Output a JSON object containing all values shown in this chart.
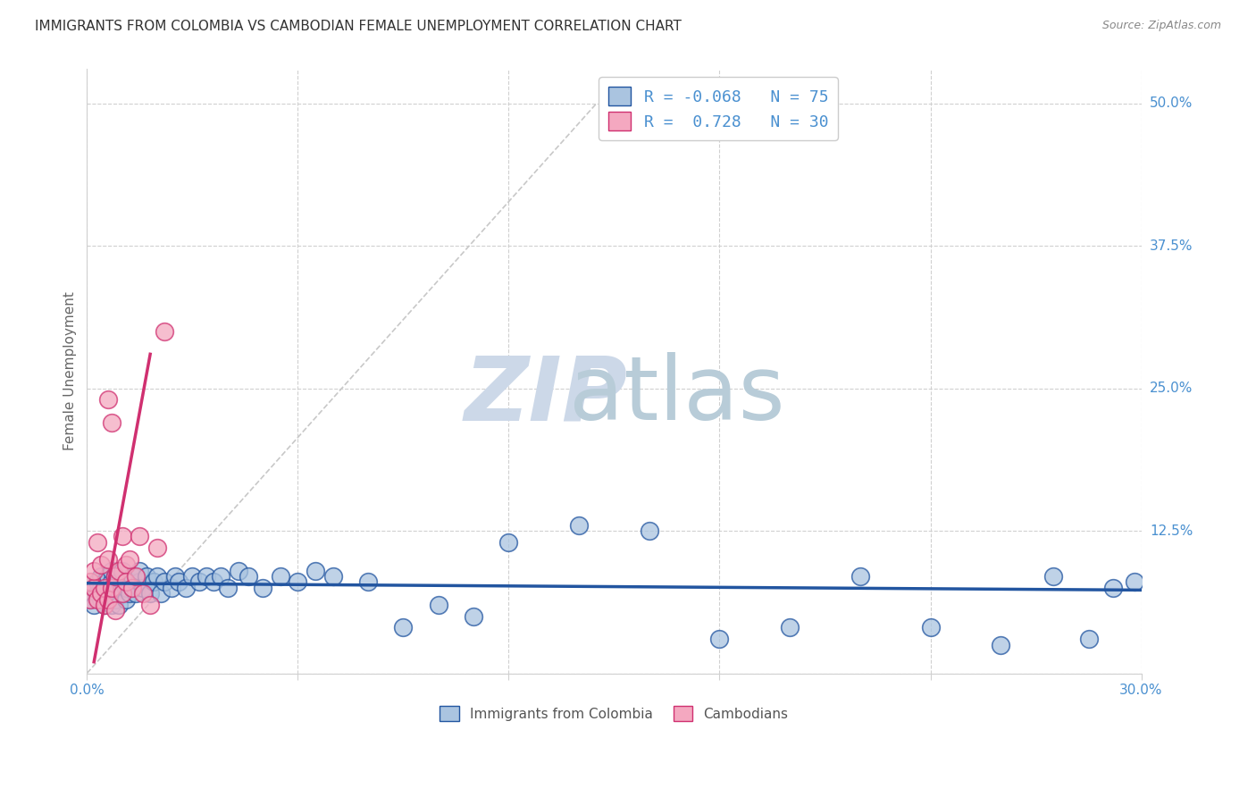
{
  "title": "IMMIGRANTS FROM COLOMBIA VS CAMBODIAN FEMALE UNEMPLOYMENT CORRELATION CHART",
  "source": "Source: ZipAtlas.com",
  "xlabel_blue": "Immigrants from Colombia",
  "xlabel_pink": "Cambodians",
  "ylabel": "Female Unemployment",
  "R_blue": -0.068,
  "N_blue": 75,
  "R_pink": 0.728,
  "N_pink": 30,
  "xlim": [
    0.0,
    0.3
  ],
  "ylim": [
    0.0,
    0.53
  ],
  "yticks": [
    0.0,
    0.125,
    0.25,
    0.375,
    0.5
  ],
  "ytick_labels": [
    "",
    "12.5%",
    "25.0%",
    "37.5%",
    "50.0%"
  ],
  "xticks": [
    0.0,
    0.06,
    0.12,
    0.18,
    0.24,
    0.3
  ],
  "xtick_labels": [
    "0.0%",
    "",
    "",
    "",
    "",
    "30.0%"
  ],
  "blue_color": "#aac4e0",
  "blue_line_color": "#2255a0",
  "pink_color": "#f4a8c0",
  "pink_line_color": "#d03070",
  "watermark_zip_color": "#ccd8e8",
  "watermark_atlas_color": "#b8ccd8",
  "blue_scatter_x": [
    0.001,
    0.002,
    0.002,
    0.003,
    0.003,
    0.004,
    0.004,
    0.004,
    0.005,
    0.005,
    0.005,
    0.006,
    0.006,
    0.006,
    0.007,
    0.007,
    0.007,
    0.007,
    0.008,
    0.008,
    0.008,
    0.009,
    0.009,
    0.01,
    0.01,
    0.01,
    0.011,
    0.011,
    0.012,
    0.012,
    0.013,
    0.013,
    0.014,
    0.015,
    0.015,
    0.016,
    0.017,
    0.018,
    0.019,
    0.02,
    0.021,
    0.022,
    0.024,
    0.025,
    0.026,
    0.028,
    0.03,
    0.032,
    0.034,
    0.036,
    0.038,
    0.04,
    0.043,
    0.046,
    0.05,
    0.055,
    0.06,
    0.065,
    0.07,
    0.08,
    0.09,
    0.1,
    0.11,
    0.12,
    0.14,
    0.16,
    0.18,
    0.2,
    0.22,
    0.24,
    0.26,
    0.275,
    0.285,
    0.292,
    0.298
  ],
  "blue_scatter_y": [
    0.065,
    0.075,
    0.06,
    0.07,
    0.08,
    0.065,
    0.075,
    0.085,
    0.06,
    0.07,
    0.08,
    0.065,
    0.075,
    0.085,
    0.06,
    0.07,
    0.08,
    0.09,
    0.065,
    0.075,
    0.085,
    0.06,
    0.08,
    0.07,
    0.08,
    0.09,
    0.065,
    0.075,
    0.07,
    0.08,
    0.075,
    0.085,
    0.07,
    0.08,
    0.09,
    0.075,
    0.085,
    0.07,
    0.08,
    0.085,
    0.07,
    0.08,
    0.075,
    0.085,
    0.08,
    0.075,
    0.085,
    0.08,
    0.085,
    0.08,
    0.085,
    0.075,
    0.09,
    0.085,
    0.075,
    0.085,
    0.08,
    0.09,
    0.085,
    0.08,
    0.04,
    0.06,
    0.05,
    0.115,
    0.13,
    0.125,
    0.03,
    0.04,
    0.085,
    0.04,
    0.025,
    0.085,
    0.03,
    0.075,
    0.08
  ],
  "pink_scatter_x": [
    0.001,
    0.001,
    0.002,
    0.002,
    0.003,
    0.003,
    0.004,
    0.004,
    0.005,
    0.005,
    0.006,
    0.006,
    0.006,
    0.007,
    0.007,
    0.008,
    0.008,
    0.009,
    0.01,
    0.01,
    0.011,
    0.011,
    0.012,
    0.013,
    0.014,
    0.015,
    0.016,
    0.018,
    0.02,
    0.022
  ],
  "pink_scatter_y": [
    0.065,
    0.08,
    0.075,
    0.09,
    0.065,
    0.115,
    0.07,
    0.095,
    0.06,
    0.075,
    0.065,
    0.1,
    0.24,
    0.22,
    0.075,
    0.085,
    0.055,
    0.09,
    0.07,
    0.12,
    0.095,
    0.08,
    0.1,
    0.075,
    0.085,
    0.12,
    0.07,
    0.06,
    0.11,
    0.3
  ],
  "blue_trendline_x": [
    0.0,
    0.3
  ],
  "blue_trendline_y": [
    0.079,
    0.073
  ],
  "pink_trendline_x": [
    0.002,
    0.018
  ],
  "pink_trendline_y": [
    0.01,
    0.28
  ],
  "grey_trendline_x": [
    0.0,
    0.145
  ],
  "grey_trendline_y": [
    0.0,
    0.5
  ]
}
